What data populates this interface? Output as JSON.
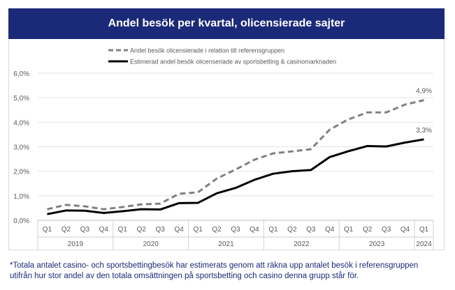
{
  "chart_data": {
    "type": "line",
    "title": "Andel besök per kvartal, olicensierade sajter",
    "categories": [
      "Q1",
      "Q2",
      "Q3",
      "Q4",
      "Q1",
      "Q2",
      "Q3",
      "Q4",
      "Q1",
      "Q2",
      "Q3",
      "Q4",
      "Q1",
      "Q2",
      "Q3",
      "Q4",
      "Q1",
      "Q2",
      "Q3",
      "Q4",
      "Q1"
    ],
    "years": [
      {
        "label": "2019",
        "quarters": 4
      },
      {
        "label": "2020",
        "quarters": 4
      },
      {
        "label": "2021",
        "quarters": 4
      },
      {
        "label": "2022",
        "quarters": 4
      },
      {
        "label": "2023",
        "quarters": 4
      },
      {
        "label": "2024",
        "quarters": 1
      }
    ],
    "yticks": [
      "0,0%",
      "1,0%",
      "2,0%",
      "3,0%",
      "4,0%",
      "5,0%",
      "6,0%"
    ],
    "ylim": [
      0,
      6
    ],
    "grid": true,
    "legend_position": "top",
    "series": [
      {
        "name": "Andel besök olicensierade i relation till referensgruppen",
        "style": "dashed",
        "color": "#808080",
        "values": [
          0.45,
          0.63,
          0.57,
          0.45,
          0.54,
          0.65,
          0.68,
          1.08,
          1.14,
          1.7,
          2.07,
          2.47,
          2.73,
          2.81,
          2.9,
          3.7,
          4.12,
          4.4,
          4.4,
          4.72,
          4.9
        ],
        "end_label": "4,9%"
      },
      {
        "name": "Estimerad andel besök olicenseriade av sportsbetting & casinomarknaden",
        "style": "solid",
        "color": "#000000",
        "values": [
          0.25,
          0.4,
          0.39,
          0.3,
          0.37,
          0.45,
          0.44,
          0.7,
          0.71,
          1.1,
          1.32,
          1.65,
          1.9,
          2.0,
          2.05,
          2.58,
          2.82,
          3.03,
          3.01,
          3.17,
          3.3
        ],
        "end_label": "3,3%"
      }
    ]
  },
  "footnote": {
    "line1": "*Totala antalet casino- och sportsbettingbesök har estimerats genom att räkna upp antalet besök i referensgruppen",
    "line2": "utifrån hur stor andel av den totala omsättningen på sportsbetting och casino denna grupp står för."
  }
}
